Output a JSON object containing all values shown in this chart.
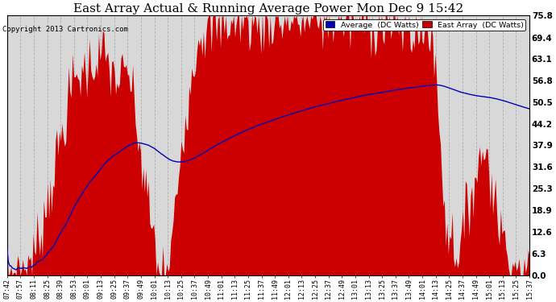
{
  "title": "East Array Actual & Running Average Power Mon Dec 9 15:42",
  "copyright": "Copyright 2013 Cartronics.com",
  "yticks": [
    0.0,
    6.3,
    12.6,
    18.9,
    25.3,
    31.6,
    37.9,
    44.2,
    50.5,
    56.8,
    63.1,
    69.4,
    75.8
  ],
  "ylim": [
    0.0,
    75.8
  ],
  "bg_color": "#ffffff",
  "plot_bg_color": "#d8d8d8",
  "grid_color": "#aaaaaa",
  "east_array_color": "#cc0000",
  "average_color": "#0000bb",
  "title_fontsize": 11,
  "legend_labels": [
    "Average  (DC Watts)",
    "East Array  (DC Watts)"
  ],
  "legend_bg_colors": [
    "#0000bb",
    "#cc0000"
  ],
  "xtick_labels": [
    "07:42",
    "07:57",
    "08:11",
    "08:25",
    "08:39",
    "08:53",
    "09:01",
    "09:13",
    "09:25",
    "09:37",
    "09:49",
    "10:01",
    "10:13",
    "10:25",
    "10:37",
    "10:49",
    "11:01",
    "11:13",
    "11:25",
    "11:37",
    "11:49",
    "12:01",
    "12:13",
    "12:25",
    "12:37",
    "12:49",
    "13:01",
    "13:13",
    "13:25",
    "13:37",
    "13:49",
    "14:01",
    "14:13",
    "14:25",
    "14:37",
    "14:49",
    "15:01",
    "15:13",
    "15:25",
    "15:37"
  ]
}
